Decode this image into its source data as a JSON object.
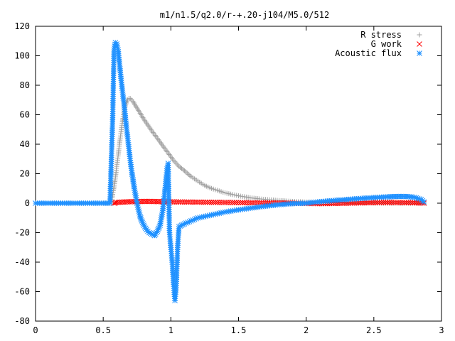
{
  "chart_data": {
    "type": "scatter",
    "title": "m1/n1.5/q2.0/r-+.20-j104/M5.0/512",
    "xlabel": "",
    "ylabel": "",
    "xlim": [
      0,
      3
    ],
    "ylim": [
      -80,
      120
    ],
    "x_ticks": [
      0,
      0.5,
      1,
      1.5,
      2,
      2.5,
      3
    ],
    "x_tick_labels": [
      "0",
      "0.5",
      "1",
      "1.5",
      "2",
      "2.5",
      "3"
    ],
    "y_ticks": [
      -80,
      -60,
      -40,
      -20,
      0,
      20,
      40,
      60,
      80,
      100,
      120
    ],
    "y_tick_labels": [
      "-80",
      "-60",
      "-40",
      "-20",
      "0",
      "20",
      "40",
      "60",
      "80",
      "100",
      "120"
    ],
    "grid": false,
    "legend_position": "top-right",
    "series": [
      {
        "name": "R stress",
        "marker": "plus",
        "color": "#a0a0a0",
        "x": [
          0.0,
          0.2,
          0.4,
          0.56,
          0.57,
          0.58,
          0.59,
          0.6,
          0.61,
          0.62,
          0.63,
          0.64,
          0.65,
          0.66,
          0.67,
          0.68,
          0.69,
          0.7,
          0.71,
          0.72,
          0.74,
          0.76,
          0.78,
          0.8,
          0.83,
          0.86,
          0.9,
          0.94,
          0.98,
          1.02,
          1.06,
          1.1,
          1.15,
          1.2,
          1.25,
          1.3,
          1.4,
          1.5,
          1.6,
          1.7,
          1.8,
          1.9,
          2.0,
          2.1,
          2.2,
          2.3,
          2.4,
          2.5,
          2.6,
          2.7,
          2.8,
          2.87
        ],
        "y": [
          0,
          0,
          0,
          0,
          6,
          11,
          17,
          25,
          32,
          40,
          47,
          54,
          60,
          65,
          68,
          70,
          71,
          71,
          70,
          69,
          66,
          63,
          60,
          57,
          53,
          49,
          44,
          39,
          34,
          29,
          25,
          22,
          18,
          15,
          12,
          10,
          7,
          5,
          3.5,
          2.5,
          1.8,
          1.2,
          0.8,
          0.5,
          0.3,
          0.2,
          0.1,
          0.1,
          0,
          0,
          0,
          0
        ]
      },
      {
        "name": "G work",
        "marker": "cross",
        "color": "#ff0000",
        "x": [
          0.58,
          0.6,
          0.65,
          0.7,
          0.75,
          0.8,
          0.85,
          0.9,
          0.95,
          1.0,
          1.1,
          1.2,
          1.3,
          1.4,
          1.5,
          1.6,
          1.7,
          1.8,
          1.9,
          2.0,
          2.1,
          2.2,
          2.3,
          2.4,
          2.5,
          2.6,
          2.7,
          2.8,
          2.87
        ],
        "y": [
          0,
          0.5,
          0.8,
          1,
          1.1,
          1.2,
          1.2,
          1.1,
          1,
          0.9,
          0.8,
          0.7,
          0.6,
          0.5,
          0.4,
          0.3,
          0.2,
          0.1,
          0,
          -0.2,
          -0.3,
          -0.2,
          0,
          0.2,
          0.4,
          0.5,
          0.4,
          0.3,
          0
        ]
      },
      {
        "name": "Acoustic flux",
        "marker": "star",
        "color": "#1e90ff",
        "x": [
          0.0,
          0.2,
          0.4,
          0.55,
          0.57,
          0.58,
          0.59,
          0.6,
          0.61,
          0.62,
          0.63,
          0.64,
          0.65,
          0.66,
          0.67,
          0.68,
          0.69,
          0.7,
          0.71,
          0.72,
          0.73,
          0.74,
          0.75,
          0.76,
          0.77,
          0.78,
          0.8,
          0.82,
          0.84,
          0.86,
          0.88,
          0.9,
          0.92,
          0.93,
          0.94,
          0.95,
          0.96,
          0.97,
          0.98,
          0.99,
          1.0,
          1.01,
          1.02,
          1.03,
          1.04,
          1.05,
          1.06,
          1.08,
          1.1,
          1.15,
          1.2,
          1.3,
          1.4,
          1.5,
          1.6,
          1.7,
          1.8,
          1.9,
          2.0,
          2.1,
          2.2,
          2.3,
          2.4,
          2.5,
          2.6,
          2.65,
          2.7,
          2.75,
          2.8,
          2.85,
          2.87
        ],
        "y": [
          0,
          0,
          0,
          0,
          58,
          104,
          109,
          108,
          104,
          95,
          86,
          78,
          70,
          62,
          53,
          45,
          37,
          29,
          22,
          16,
          10,
          5,
          0,
          -4,
          -8,
          -11,
          -15,
          -18,
          -20,
          -21,
          -22,
          -19,
          -15,
          -10,
          -5,
          3,
          12,
          22,
          27,
          -20,
          -30,
          -40,
          -55,
          -66,
          -56,
          -30,
          -16,
          -15,
          -14,
          -12,
          -10,
          -8,
          -6,
          -4.5,
          -3.2,
          -2,
          -1,
          -0.3,
          0,
          1,
          1.8,
          2.5,
          3.2,
          3.8,
          4.3,
          4.5,
          4.6,
          4.5,
          4,
          2.5,
          0.8
        ]
      }
    ]
  }
}
